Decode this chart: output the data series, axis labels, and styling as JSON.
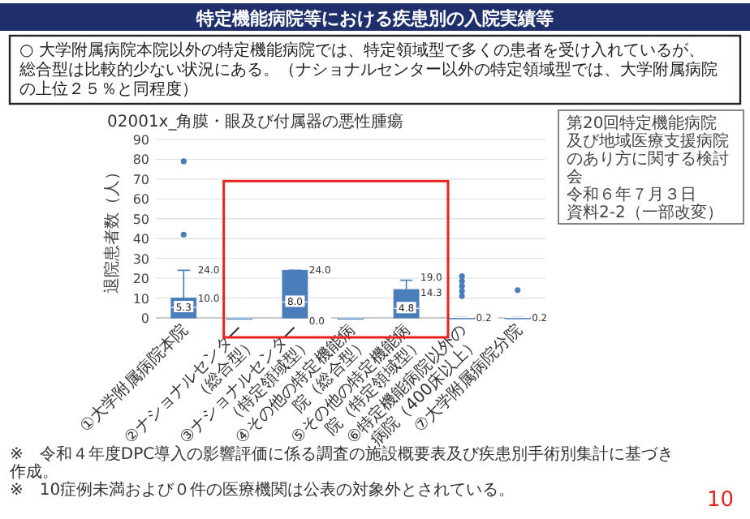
{
  "chart_data": {
    "type": "box",
    "title": "特定機能病院等における疾患別の入院実績等",
    "subtitle": "02001x_角膜・眼及び付属器の悪性腫瘍",
    "ylabel": "退院患者数（人）",
    "categories": [
      "①大学附属病院本院",
      "②ナショナルセンター（総合型）",
      "③ナショナルセンター（特定領域型）",
      "④その他の特定機能病院（総合型）",
      "⑤その他の特定機能病院（特定領域型）",
      "⑥特定機能病院以外の病院（400床以上）",
      "⑦大学附属病院分院"
    ],
    "boxes": [
      {
        "low": 0,
        "q1": 0,
        "median": 5.3,
        "q3": 10.0,
        "high": 24.0,
        "outliers": [
          42,
          79
        ]
      },
      {
        "low": 0,
        "q1": 0,
        "median": 0,
        "q3": 0,
        "high": 0
      },
      {
        "low": 0,
        "q1": 0,
        "median": 8.0,
        "q3": 24.0,
        "high": 24.0
      },
      {
        "low": 0,
        "q1": 0,
        "median": 0,
        "q3": 0,
        "high": 0
      },
      {
        "low": 0,
        "q1": 0,
        "median": 4.8,
        "q3": 14.3,
        "high": 19.0
      },
      {
        "low": 0.2,
        "q1": 0.2,
        "median": 0.2,
        "q3": 0.2,
        "high": 0.2,
        "outliers": [
          11,
          13.5,
          16,
          18.5,
          21
        ]
      },
      {
        "low": 0.2,
        "q1": 0.2,
        "median": 0.2,
        "q3": 0.2,
        "high": 0.2,
        "outliers": [
          14
        ]
      }
    ],
    "color": "#4a7ebb",
    "ylim": [
      0,
      90
    ],
    "yticks": [
      0,
      10,
      20,
      30,
      40,
      50,
      60,
      70,
      80,
      90
    ],
    "grid": "y",
    "annotations": [
      "○ 大学附属病院本院以外の特定機能病院では、特定領域型で多くの患者を受け入れているが、総合型は比較的少ない状況にある。（ナショナルセンター以外の特定領域型では、大学附属病院の上位２５％と同程度）",
      "第20回特定機能病院及び地域医療支援病院のあり方に関する検討会",
      "令和６年７月３日",
      "資料2-2（一部改変）",
      "※　令和４年度DPC導入の影響評価に係る調査の施設概要表及び疾患別手術別集計に基づき作成。",
      "※　10症例未満および０件の医療機関は公表の対象外とされている。",
      "10",
      {
        "text": "5.3",
        "x": "①大学附属病院本院",
        "y": 5.3
      },
      {
        "text": "10.0",
        "x": "①大学附属病院本院",
        "y": 10.0
      },
      {
        "text": "24.0",
        "x": "①大学附属病院本院",
        "y": 24.0
      },
      {
        "text": "8.0",
        "x": "③ナショナルセンター（特定領域型）",
        "y": 8.0
      },
      {
        "text": "24.0",
        "x": "③ナショナルセンター（特定領域型）",
        "y": 24.0
      },
      {
        "text": "0.0",
        "x": "③ナショナルセンター（特定領域型）",
        "y": 0.0
      },
      {
        "text": "4.8",
        "x": "⑤その他の特定機能病院（特定領域型）",
        "y": 4.8
      },
      {
        "text": "14.3",
        "x": "⑤その他の特定機能病院（特定領域型）",
        "y": 14.3
      },
      {
        "text": "19.0",
        "x": "⑤その他の特定機能病院（特定領域型）",
        "y": 19.0
      },
      {
        "text": "0.2",
        "x": "⑥特定機能病院以外の病院（400床以上）",
        "y": 0.2
      },
      {
        "text": "0.2",
        "x": "⑦大学附属病院分院",
        "y": 0.2
      }
    ]
  }
}
